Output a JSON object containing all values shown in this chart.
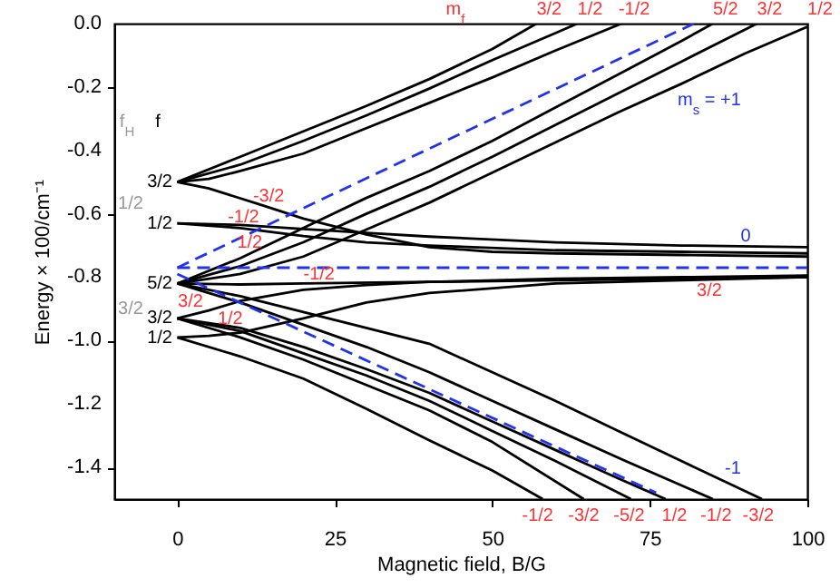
{
  "chart_data": {
    "type": "line",
    "xlabel": "Magnetic field, B/G",
    "ylabel": "Energy × 100/cm⁻¹",
    "xlim": [
      -10,
      100
    ],
    "ylim": [
      -1.5,
      0
    ],
    "xticks": [
      0,
      25,
      50,
      75,
      100
    ],
    "yticks": [
      {
        "value": -1.4,
        "label": "-1.4"
      },
      {
        "value": -1.2,
        "label": "-1.2"
      },
      {
        "value": -1,
        "label": "-1.0"
      },
      {
        "value": -0.8,
        "label": "-0.8"
      },
      {
        "value": -0.6,
        "label": "-0.6"
      },
      {
        "value": -0.4,
        "label": "-0.4"
      },
      {
        "value": -0.2,
        "label": "-0.2"
      },
      {
        "value": 0,
        "label": "0.0"
      }
    ],
    "series": [
      {
        "color": "#000000",
        "x": [
          0,
          10,
          20,
          30,
          40,
          50,
          57
        ],
        "values": [
          -0.5,
          -0.42,
          -0.34,
          -0.26,
          -0.175,
          -0.08,
          0
        ]
      },
      {
        "color": "#000000",
        "x": [
          0,
          10,
          20,
          30,
          40,
          50,
          60,
          63.5
        ],
        "values": [
          -0.5,
          -0.445,
          -0.37,
          -0.29,
          -0.205,
          -0.115,
          -0.03,
          0
        ]
      },
      {
        "color": "#000000",
        "x": [
          0,
          5,
          10,
          20,
          30,
          40,
          50,
          60,
          70.5
        ],
        "values": [
          -0.5,
          -0.49,
          -0.465,
          -0.41,
          -0.33,
          -0.25,
          -0.17,
          -0.085,
          0
        ]
      },
      {
        "color": "#000000",
        "x": [
          0,
          10,
          20,
          30,
          40,
          50,
          60,
          70,
          80,
          85
        ],
        "values": [
          -0.82,
          -0.74,
          -0.645,
          -0.55,
          -0.465,
          -0.37,
          -0.265,
          -0.16,
          -0.055,
          0
        ]
      },
      {
        "color": "#000000",
        "x": [
          0,
          10,
          20,
          30,
          40,
          50,
          60,
          70,
          80,
          92
        ],
        "values": [
          -0.82,
          -0.765,
          -0.69,
          -0.6,
          -0.515,
          -0.42,
          -0.32,
          -0.22,
          -0.12,
          0
        ]
      },
      {
        "color": "#000000",
        "x": [
          0,
          10,
          20,
          30,
          40,
          50,
          60,
          70,
          80,
          90,
          100
        ],
        "values": [
          -0.82,
          -0.79,
          -0.735,
          -0.65,
          -0.565,
          -0.47,
          -0.375,
          -0.28,
          -0.19,
          -0.095,
          -0.01
        ]
      },
      {
        "color": "#000000",
        "x": [
          0,
          5,
          13,
          20,
          30,
          40,
          50,
          60,
          80,
          100
        ],
        "values": [
          -0.5,
          -0.52,
          -0.57,
          -0.615,
          -0.665,
          -0.705,
          -0.72,
          -0.725,
          -0.73,
          -0.735
        ]
      },
      {
        "color": "#000000",
        "x": [
          0,
          10,
          20,
          30,
          40,
          60,
          80,
          100
        ],
        "values": [
          -0.63,
          -0.635,
          -0.648,
          -0.66,
          -0.672,
          -0.69,
          -0.7,
          -0.705
        ]
      },
      {
        "color": "#000000",
        "x": [
          0,
          10,
          20,
          30,
          40,
          60,
          80,
          100
        ],
        "values": [
          -0.63,
          -0.645,
          -0.67,
          -0.69,
          -0.7,
          -0.715,
          -0.72,
          -0.725
        ]
      },
      {
        "color": "#000000",
        "x": [
          0,
          10,
          20,
          40,
          60,
          80,
          100
        ],
        "values": [
          -0.82,
          -0.823,
          -0.82,
          -0.815,
          -0.81,
          -0.805,
          -0.8
        ]
      },
      {
        "color": "#000000",
        "x": [
          0,
          5,
          10,
          20,
          30,
          40,
          60,
          80,
          100
        ],
        "values": [
          -0.93,
          -0.905,
          -0.875,
          -0.84,
          -0.825,
          -0.815,
          -0.805,
          -0.8,
          -0.795
        ]
      },
      {
        "color": "#000000",
        "x": [
          0,
          5,
          10,
          20,
          30,
          40,
          60,
          80,
          100
        ],
        "values": [
          -0.99,
          -0.985,
          -0.975,
          -0.93,
          -0.88,
          -0.85,
          -0.82,
          -0.81,
          -0.8
        ]
      },
      {
        "color": "#000000",
        "x": [
          0,
          10,
          20,
          30,
          40,
          50,
          60,
          70,
          80,
          92.8
        ],
        "values": [
          -0.82,
          -0.86,
          -0.91,
          -0.96,
          -1.01,
          -1.1,
          -1.19,
          -1.285,
          -1.38,
          -1.5
        ]
      },
      {
        "color": "#000000",
        "x": [
          0,
          10,
          20,
          30,
          40,
          50,
          60,
          70,
          85
        ],
        "values": [
          -0.82,
          -0.88,
          -0.95,
          -1.02,
          -1.1,
          -1.19,
          -1.28,
          -1.37,
          -1.5
        ]
      },
      {
        "color": "#000000",
        "x": [
          0,
          10,
          20,
          30,
          40,
          50,
          60,
          70,
          77.5
        ],
        "values": [
          -0.93,
          -0.96,
          -1.02,
          -1.09,
          -1.165,
          -1.255,
          -1.345,
          -1.435,
          -1.5
        ]
      },
      {
        "color": "#000000",
        "x": [
          0,
          10,
          20,
          30,
          40,
          50,
          60,
          72
        ],
        "values": [
          -0.93,
          -0.97,
          -1.04,
          -1.11,
          -1.19,
          -1.285,
          -1.38,
          -1.5
        ]
      },
      {
        "color": "#000000",
        "x": [
          0,
          10,
          20,
          30,
          40,
          50,
          64.5
        ],
        "values": [
          -0.93,
          -0.99,
          -1.06,
          -1.14,
          -1.22,
          -1.32,
          -1.5
        ]
      },
      {
        "color": "#000000",
        "x": [
          0,
          10,
          20,
          30,
          40,
          50,
          58
        ],
        "values": [
          -0.99,
          -1.05,
          -1.12,
          -1.215,
          -1.315,
          -1.41,
          -1.5
        ]
      },
      {
        "color": "#2233ee",
        "line_style": "dashed",
        "x": [
          0,
          82
        ],
        "values": [
          -0.77,
          0
        ]
      },
      {
        "color": "#2233ee",
        "line_style": "dashed",
        "x": [
          0,
          100
        ],
        "values": [
          -0.77,
          -0.77
        ]
      },
      {
        "color": "#2233ee",
        "line_style": "dashed",
        "x": [
          0,
          76
        ],
        "values": [
          -0.79,
          -1.48
        ]
      }
    ],
    "annotations": [
      "f$_{H}$",
      "f",
      "1/2",
      "3/2",
      "3/2",
      "1/2",
      "5/2",
      "3/2",
      "1/2",
      "3/2",
      "3/2",
      "m$_{s}$ = +1",
      "0",
      "-1",
      "m$_{f}$",
      {
        "text": "-3/2",
        "x": 14.5,
        "y": -0.545
      },
      {
        "text": "-1/2",
        "x": 10.5,
        "y": -0.61
      },
      {
        "text": "1/2",
        "x": 11.5,
        "y": -0.69
      },
      {
        "text": "-1/2",
        "x": 22.5,
        "y": -0.79
      },
      {
        "text": "1/2",
        "x": 8.4,
        "y": -0.93
      },
      {
        "text": "3/2",
        "x": 57,
        "y": 0
      },
      {
        "text": "1/2",
        "x": 63.5,
        "y": 0
      },
      {
        "text": "-1/2",
        "x": 70.5,
        "y": 0
      },
      {
        "text": "5/2",
        "x": 85,
        "y": 0
      },
      {
        "text": "3/2",
        "x": 92,
        "y": 0
      },
      {
        "text": "1/2",
        "x": 100,
        "y": 0
      },
      {
        "text": "-1/2",
        "x": 57.2,
        "y": -1.5
      },
      {
        "text": "-3/2",
        "x": 64.5,
        "y": -1.5
      },
      {
        "text": "-5/2",
        "x": 71.7,
        "y": -1.5
      },
      {
        "text": "1/2",
        "x": 78.9,
        "y": -1.5
      },
      {
        "text": "-1/2",
        "x": 85.5,
        "y": -1.5
      },
      {
        "text": "-3/2",
        "x": 92.2,
        "y": -1.5
      }
    ]
  }
}
